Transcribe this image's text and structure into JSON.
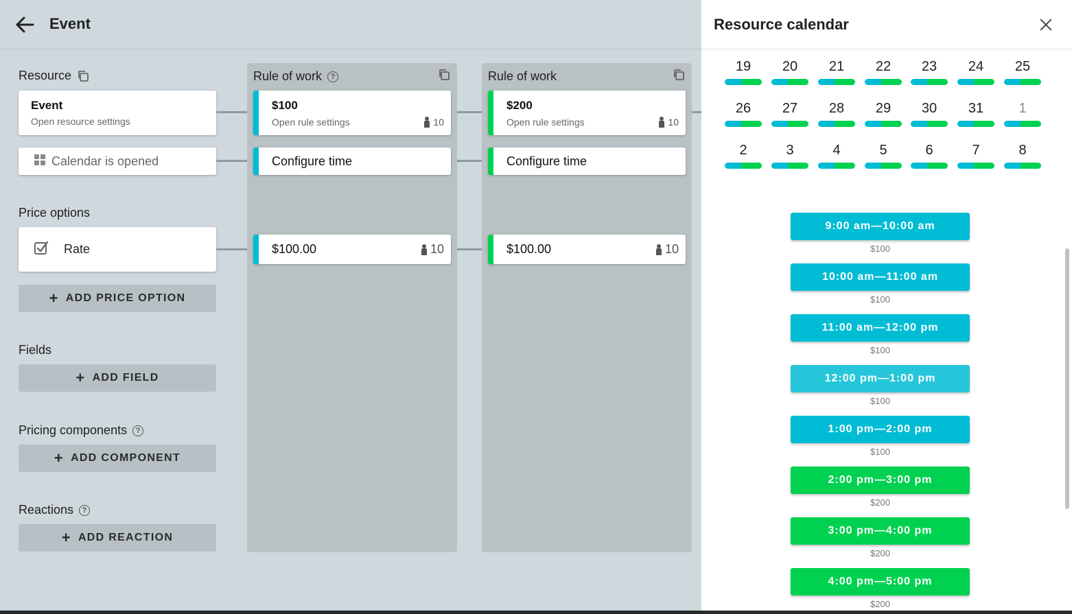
{
  "header": {
    "title": "Event"
  },
  "resource": {
    "label": "Resource",
    "card_title": "Event",
    "card_sub": "Open resource settings",
    "calendar_label": "Calendar is opened"
  },
  "price_options": {
    "label": "Price options",
    "rate_label": "Rate",
    "add_label": "ADD PRICE OPTION"
  },
  "fields": {
    "label": "Fields",
    "add_label": "ADD FIELD"
  },
  "pricing_components": {
    "label": "Pricing components",
    "add_label": "ADD COMPONENT"
  },
  "reactions": {
    "label": "Reactions",
    "add_label": "ADD REACTION"
  },
  "columns": [
    {
      "title": "Rule of work",
      "help": "?",
      "rule_price": "$100",
      "rule_sub": "Open rule settings",
      "rule_count": "10",
      "configure_label": "Configure time",
      "option_price": "$100.00",
      "option_count": "10",
      "accent": "#00bcd4"
    },
    {
      "title": "Rule of work",
      "rule_price": "$200",
      "rule_sub": "Open rule settings",
      "rule_count": "10",
      "configure_label": "Configure time",
      "option_price": "$100.00",
      "option_count": "10",
      "accent": "#00d150"
    }
  ],
  "panel": {
    "title": "Resource calendar",
    "weeks": [
      [
        "19",
        "20",
        "21",
        "22",
        "23",
        "24",
        "25"
      ],
      [
        "26",
        "27",
        "28",
        "29",
        "30",
        "31",
        "1"
      ],
      [
        "2",
        "3",
        "4",
        "5",
        "6",
        "7",
        "8"
      ]
    ],
    "slots": [
      {
        "time": "9:00 am—10:00 am",
        "price": "$100",
        "color": "#00bcd4"
      },
      {
        "time": "10:00 am—11:00 am",
        "price": "$100",
        "color": "#00bcd4"
      },
      {
        "time": "11:00 am—12:00 pm",
        "price": "$100",
        "color": "#00bcd4"
      },
      {
        "time": "12:00 pm—1:00 pm",
        "price": "$100",
        "color": "#26c6da"
      },
      {
        "time": "1:00 pm—2:00 pm",
        "price": "$100",
        "color": "#00bcd4"
      },
      {
        "time": "2:00 pm—3:00 pm",
        "price": "$200",
        "color": "#00d150"
      },
      {
        "time": "3:00 pm—4:00 pm",
        "price": "$200",
        "color": "#00d150"
      },
      {
        "time": "4:00 pm—5:00 pm",
        "price": "$200",
        "color": "#00d150"
      }
    ]
  }
}
